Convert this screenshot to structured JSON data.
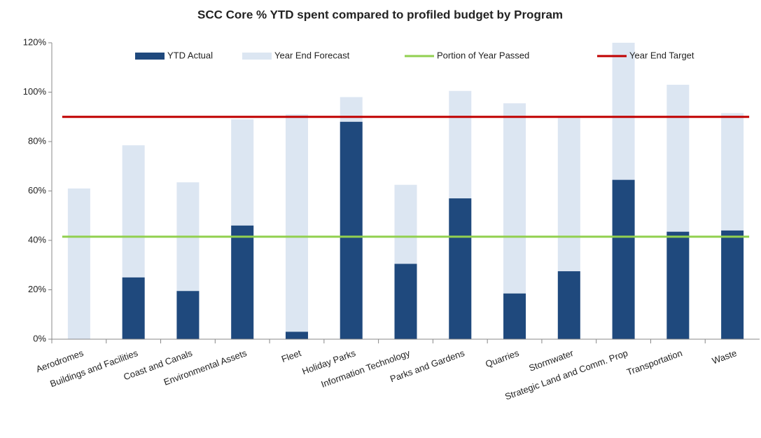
{
  "chart_data": {
    "type": "bar",
    "title": "SCC Core % YTD spent compared to profiled budget by Program",
    "categories": [
      "Aerodromes",
      "Buildings and Facilities",
      "Coast and Canals",
      "Environmental Assets",
      "Fleet",
      "Holiday Parks",
      "Information Technology",
      "Parks and Gardens",
      "Quarries",
      "Stormwater",
      "Strategic Land and Comm. Prop",
      "Transportation",
      "Waste"
    ],
    "series": [
      {
        "name": "YTD Actual",
        "kind": "bar",
        "color": "#1f497d",
        "values": [
          0,
          25,
          19.5,
          46,
          3,
          88,
          30.5,
          57,
          18.5,
          27.5,
          64.5,
          43.5,
          44
        ]
      },
      {
        "name": "Year End Forecast",
        "kind": "bar",
        "color": "#dce6f2",
        "values": [
          61,
          78.5,
          63.5,
          89,
          91,
          98,
          62.5,
          100.5,
          95.5,
          89.5,
          120,
          103,
          91.5
        ]
      },
      {
        "name": "Portion of Year Passed",
        "kind": "line",
        "color": "#92d050",
        "values": [
          41.5,
          41.5,
          41.5,
          41.5,
          41.5,
          41.5,
          41.5,
          41.5,
          41.5,
          41.5,
          41.5,
          41.5,
          41.5
        ]
      },
      {
        "name": "Year End Target",
        "kind": "line",
        "color": "#c00000",
        "values": [
          90,
          90,
          90,
          90,
          90,
          90,
          90,
          90,
          90,
          90,
          90,
          90,
          90
        ]
      }
    ],
    "ylim": [
      0,
      120
    ],
    "yticks": [
      {
        "value": 0,
        "label": "0%"
      },
      {
        "value": 20,
        "label": "20%"
      },
      {
        "value": 40,
        "label": "40%"
      },
      {
        "value": 60,
        "label": "60%"
      },
      {
        "value": 80,
        "label": "80%"
      },
      {
        "value": 100,
        "label": "100%"
      },
      {
        "value": 120,
        "label": "120%"
      }
    ],
    "grid": false
  }
}
